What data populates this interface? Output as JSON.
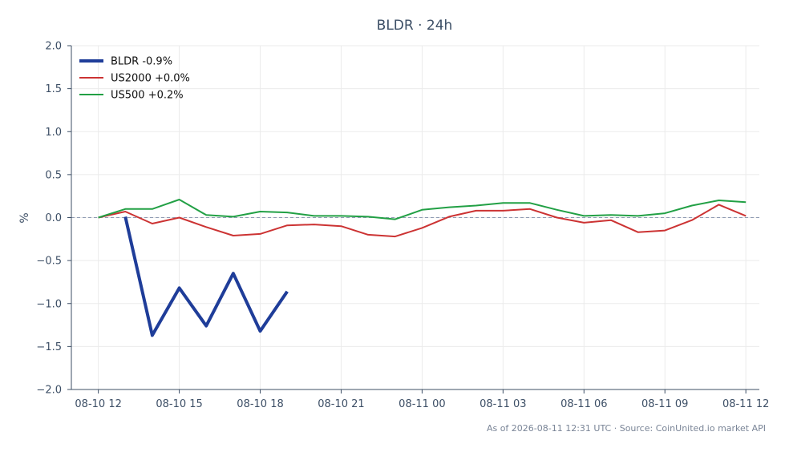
{
  "chart_data": {
    "type": "line",
    "title": "BLDR · 24h",
    "xlabel": "",
    "ylabel": "%",
    "ylim": [
      -2.0,
      2.0
    ],
    "xlim": [
      "2026-08-10 11:00",
      "2026-08-11 12:30"
    ],
    "yticks": [
      "2.0",
      "1.5",
      "1.0",
      "0.5",
      "0.0",
      "−0.5",
      "−1.0",
      "−1.5",
      "−2.0"
    ],
    "xticks": [
      "08-10 12",
      "08-10 15",
      "08-10 18",
      "08-10 21",
      "08-11 00",
      "08-11 03",
      "08-11 06",
      "08-11 09",
      "08-11 12"
    ],
    "grid": true,
    "zero_line": true,
    "legend_position": "top-left",
    "x": [
      "2026-08-10 12:00",
      "2026-08-10 13:00",
      "2026-08-10 14:00",
      "2026-08-10 15:00",
      "2026-08-10 16:00",
      "2026-08-10 17:00",
      "2026-08-10 18:00",
      "2026-08-10 19:00",
      "2026-08-10 20:00",
      "2026-08-10 21:00",
      "2026-08-10 22:00",
      "2026-08-10 23:00",
      "2026-08-11 00:00",
      "2026-08-11 01:00",
      "2026-08-11 02:00",
      "2026-08-11 03:00",
      "2026-08-11 04:00",
      "2026-08-11 05:00",
      "2026-08-11 06:00",
      "2026-08-11 07:00",
      "2026-08-11 08:00",
      "2026-08-11 09:00",
      "2026-08-11 10:00",
      "2026-08-11 11:00",
      "2026-08-11 12:00"
    ],
    "series": [
      {
        "name": "BLDR -0.9%",
        "color": "#1f3d99",
        "width": 4,
        "values": [
          null,
          0.01,
          -1.37,
          -0.82,
          -1.26,
          -0.65,
          -1.32,
          -0.86,
          null,
          null,
          null,
          null,
          null,
          null,
          null,
          null,
          null,
          null,
          null,
          null,
          null,
          null,
          null,
          null,
          null
        ]
      },
      {
        "name": "US2000 +0.0%",
        "color": "#cc3333",
        "width": 2,
        "values": [
          0.0,
          0.07,
          -0.07,
          0.0,
          -0.11,
          -0.21,
          -0.19,
          -0.09,
          -0.08,
          -0.1,
          -0.2,
          -0.22,
          -0.12,
          0.01,
          0.08,
          0.08,
          0.1,
          0.0,
          -0.06,
          -0.03,
          -0.17,
          -0.15,
          -0.03,
          0.15,
          0.02
        ]
      },
      {
        "name": "US500 +0.2%",
        "color": "#22a045",
        "width": 2,
        "values": [
          0.0,
          0.1,
          0.1,
          0.21,
          0.03,
          0.01,
          0.07,
          0.06,
          0.02,
          0.02,
          0.01,
          -0.02,
          0.09,
          0.12,
          0.14,
          0.17,
          0.17,
          0.09,
          0.02,
          0.03,
          0.02,
          0.05,
          0.14,
          0.2,
          0.18
        ]
      }
    ]
  },
  "footer": "As of 2026-08-11 12:31 UTC · Source: CoinUnited.io market API"
}
